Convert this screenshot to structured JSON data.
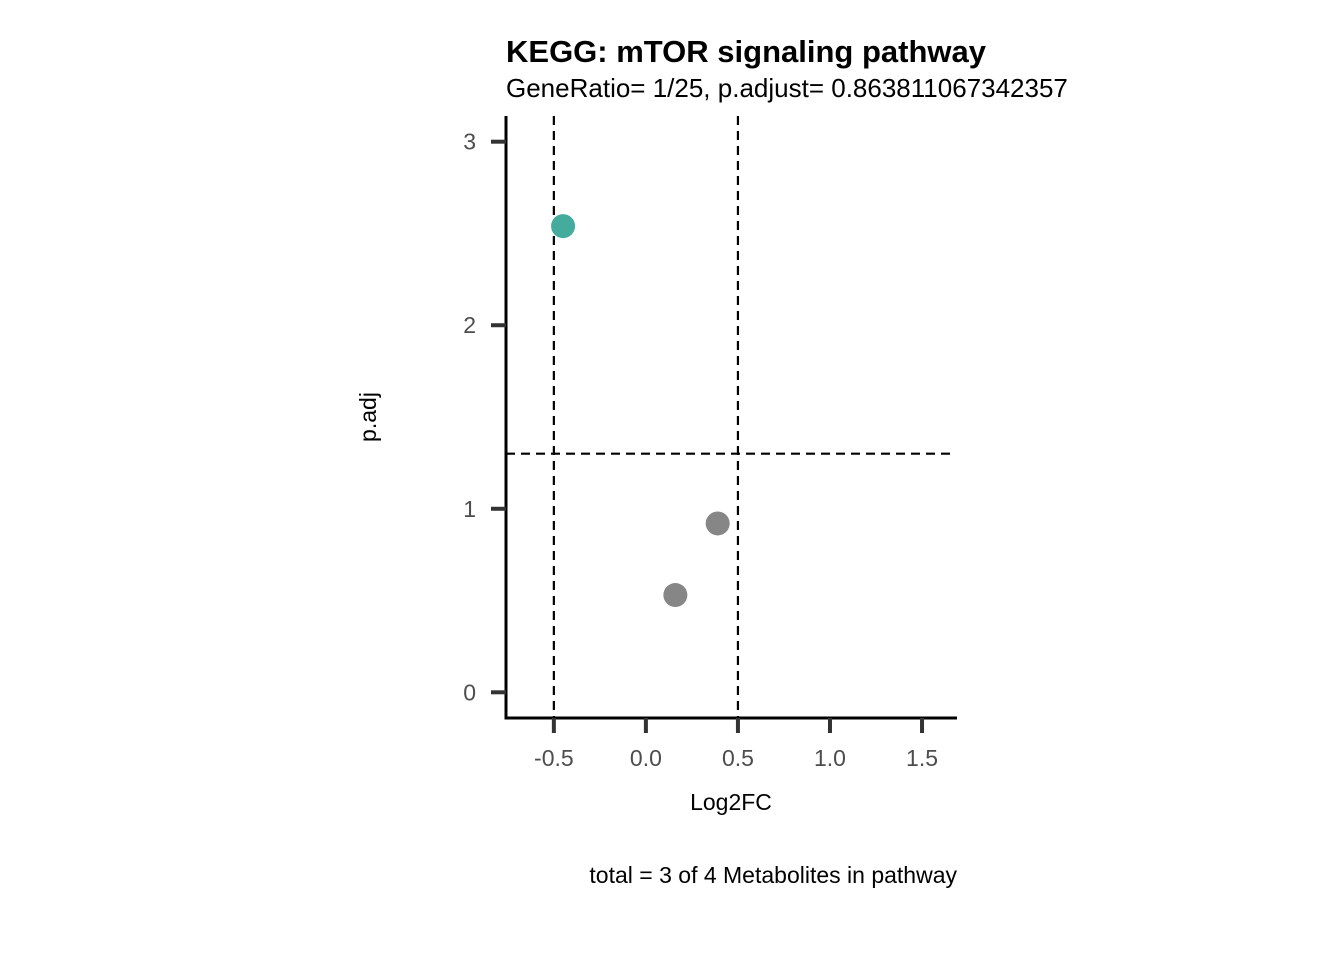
{
  "chart_data": {
    "type": "scatter",
    "title": "KEGG: mTOR signaling pathway",
    "subtitle": "GeneRatio= 1/25, p.adjust= 0.863811067342357",
    "xlabel": "Log2FC",
    "ylabel": "p.adj",
    "caption": "total = 3 of 4 Metabolites in pathway",
    "xlim": [
      -0.76,
      1.69
    ],
    "ylim": [
      -0.14,
      3.14
    ],
    "xticks": [
      -0.5,
      0.0,
      0.5,
      1.0,
      1.5
    ],
    "xtick_labels": [
      "-0.5",
      "0.0",
      "0.5",
      "1.0",
      "1.5"
    ],
    "yticks": [
      0,
      1,
      2,
      3
    ],
    "ytick_labels": [
      "0",
      "1",
      "2",
      "3"
    ],
    "vlines": [
      -0.5,
      0.5
    ],
    "hlines": [
      1.3
    ],
    "grid": false,
    "points": [
      {
        "x": -0.45,
        "y": 2.54,
        "color": "#45ab9c"
      },
      {
        "x": 0.39,
        "y": 0.92,
        "color": "#868686"
      },
      {
        "x": 0.16,
        "y": 0.53,
        "color": "#868686"
      }
    ]
  }
}
